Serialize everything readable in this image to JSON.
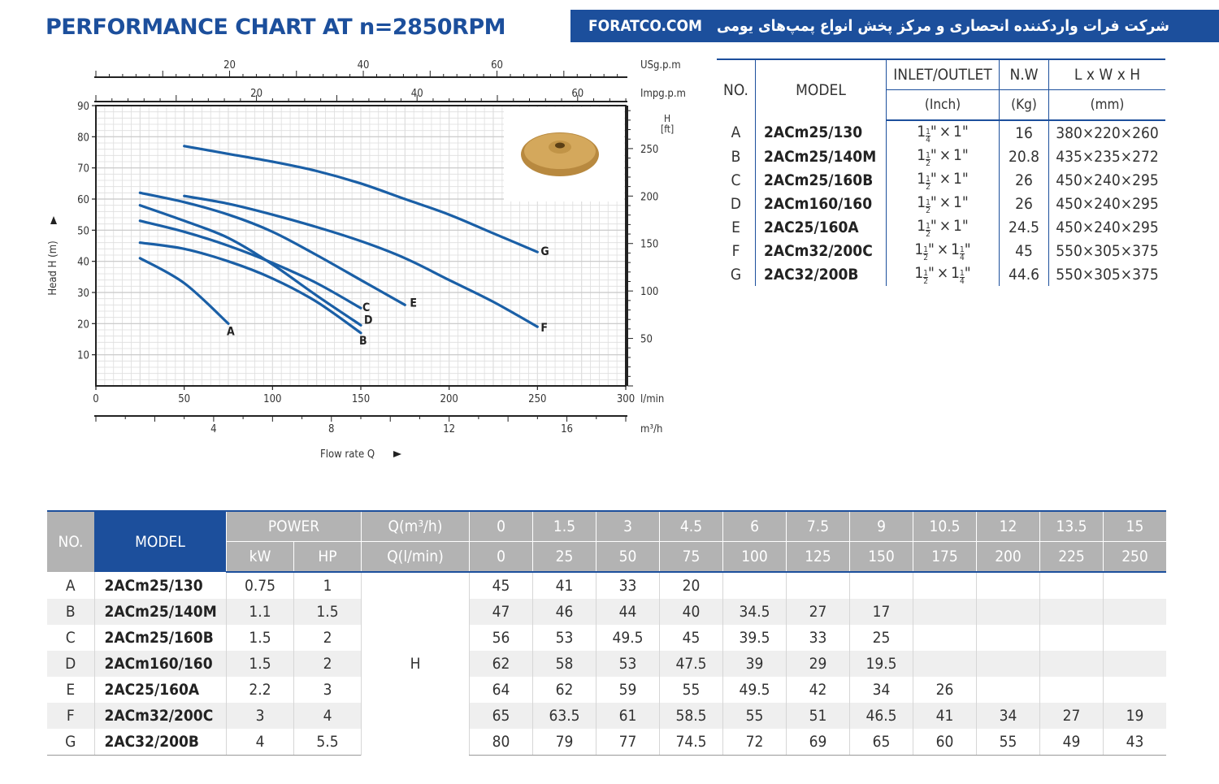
{
  "title": "PERFORMANCE CHART AT n=2850RPM",
  "banner": {
    "site": "FORATCO.COM",
    "persian": "شرکت فرات واردکننده انحصاری و مرکز پخش انواع پمپ‌های یومی"
  },
  "colors": {
    "brand": "#1c4f9c",
    "curve": "#1a5fa6",
    "header_gray": "#b3b3b3"
  },
  "chart_data": {
    "type": "line",
    "title": "PERFORMANCE CHART AT n=2850RPM",
    "xlabel": "Flow rate Q",
    "ylabel": "Head H (m)",
    "x_unit": "l/min",
    "y_unit": "m",
    "xlim": [
      0,
      300
    ],
    "ylim": [
      0,
      90
    ],
    "x_ticks": [
      0,
      50,
      100,
      150,
      200,
      250,
      300
    ],
    "y_ticks": [
      10,
      20,
      30,
      40,
      50,
      60,
      70,
      80,
      90
    ],
    "grid": true,
    "secondary_axes": {
      "usgpm": {
        "label": "USg.p.m",
        "ticks": [
          20,
          40,
          60
        ]
      },
      "impgpm": {
        "label": "Impg.p.m",
        "ticks": [
          20,
          40,
          60
        ]
      },
      "ft": {
        "label_top": "H",
        "label_unit": "[ft]",
        "ticks": [
          50,
          100,
          150,
          200,
          250
        ]
      },
      "m3h": {
        "label": "m³/h",
        "ticks": [
          4,
          8,
          12,
          16
        ]
      }
    },
    "series": [
      {
        "name": "A",
        "x": [
          25,
          50,
          75
        ],
        "y": [
          41,
          33,
          20
        ]
      },
      {
        "name": "B",
        "x": [
          25,
          50,
          75,
          100,
          125,
          150
        ],
        "y": [
          46,
          44,
          40,
          34.5,
          27,
          17
        ]
      },
      {
        "name": "C",
        "x": [
          25,
          50,
          75,
          100,
          125,
          150
        ],
        "y": [
          53,
          49.5,
          45,
          39.5,
          33,
          25
        ]
      },
      {
        "name": "D",
        "x": [
          25,
          50,
          75,
          100,
          125,
          150
        ],
        "y": [
          58,
          53,
          47.5,
          39,
          29,
          19.5
        ]
      },
      {
        "name": "E",
        "x": [
          25,
          50,
          75,
          100,
          125,
          150,
          175
        ],
        "y": [
          62,
          59,
          55,
          49.5,
          42,
          34,
          26
        ]
      },
      {
        "name": "F",
        "x": [
          50,
          75,
          100,
          125,
          150,
          175,
          200,
          225,
          250
        ],
        "y": [
          61,
          58.5,
          55,
          51,
          46.5,
          41,
          34,
          27,
          19
        ]
      },
      {
        "name": "G",
        "x": [
          50,
          75,
          100,
          125,
          150,
          175,
          200,
          225,
          250
        ],
        "y": [
          77,
          74.5,
          72,
          69,
          65,
          60,
          55,
          49,
          43
        ]
      }
    ]
  },
  "spec_table": {
    "headers": {
      "no": "NO.",
      "model": "MODEL",
      "io": "INLET/OUTLET",
      "io_unit": "(Inch)",
      "nw": "N.W",
      "nw_unit": "(Kg)",
      "dim": "L x W x H",
      "dim_unit": "(mm)"
    },
    "rows": [
      {
        "no": "A",
        "model": "2ACm25/130",
        "in_whole": "1",
        "in_num": "1",
        "in_den": "4",
        "x": "×",
        "out_whole": "1\"",
        "out_frac": false,
        "out_num": "",
        "out_den": "",
        "nw": "16",
        "dim": "380×220×260"
      },
      {
        "no": "B",
        "model": "2ACm25/140M",
        "in_whole": "1",
        "in_num": "1",
        "in_den": "2",
        "x": "×",
        "out_whole": "1\"",
        "out_frac": false,
        "out_num": "",
        "out_den": "",
        "nw": "20.8",
        "dim": "435×235×272"
      },
      {
        "no": "C",
        "model": "2ACm25/160B",
        "in_whole": "1",
        "in_num": "1",
        "in_den": "2",
        "x": "×",
        "out_whole": "1\"",
        "out_frac": false,
        "out_num": "",
        "out_den": "",
        "nw": "26",
        "dim": "450×240×295"
      },
      {
        "no": "D",
        "model": "2ACm160/160",
        "in_whole": "1",
        "in_num": "1",
        "in_den": "2",
        "x": "×",
        "out_whole": "1\"",
        "out_frac": false,
        "out_num": "",
        "out_den": "",
        "nw": "26",
        "dim": "450×240×295"
      },
      {
        "no": "E",
        "model": "2AC25/160A",
        "in_whole": "1",
        "in_num": "1",
        "in_den": "2",
        "x": "×",
        "out_whole": "1\"",
        "out_frac": false,
        "out_num": "",
        "out_den": "",
        "nw": "24.5",
        "dim": "450×240×295"
      },
      {
        "no": "F",
        "model": "2ACm32/200C",
        "in_whole": "1",
        "in_num": "1",
        "in_den": "2",
        "x": "×",
        "out_whole": "1",
        "out_frac": true,
        "out_num": "1",
        "out_den": "4",
        "nw": "45",
        "dim": "550×305×375"
      },
      {
        "no": "G",
        "model": "2AC32/200B",
        "in_whole": "1",
        "in_num": "1",
        "in_den": "2",
        "x": "×",
        "out_whole": "1",
        "out_frac": true,
        "out_num": "1",
        "out_den": "4",
        "nw": "44.6",
        "dim": "550×305×375"
      }
    ]
  },
  "perf_table": {
    "headers": {
      "no": "NO.",
      "model": "MODEL",
      "power": "POWER",
      "kw": "kW",
      "hp": "HP",
      "q_m3h": "Q(m³/h)",
      "q_lmin": "Q(l/min)",
      "h": "H"
    },
    "q_m3h": [
      "0",
      "1.5",
      "3",
      "4.5",
      "6",
      "7.5",
      "9",
      "10.5",
      "12",
      "13.5",
      "15"
    ],
    "q_lmin": [
      "0",
      "25",
      "50",
      "75",
      "100",
      "125",
      "150",
      "175",
      "200",
      "225",
      "250"
    ],
    "rows": [
      {
        "no": "A",
        "model": "2ACm25/130",
        "kw": "0.75",
        "hp": "1",
        "h": [
          "45",
          "41",
          "33",
          "20",
          "",
          "",
          "",
          "",
          "",
          "",
          ""
        ]
      },
      {
        "no": "B",
        "model": "2ACm25/140M",
        "kw": "1.1",
        "hp": "1.5",
        "h": [
          "47",
          "46",
          "44",
          "40",
          "34.5",
          "27",
          "17",
          "",
          "",
          "",
          ""
        ]
      },
      {
        "no": "C",
        "model": "2ACm25/160B",
        "kw": "1.5",
        "hp": "2",
        "h": [
          "56",
          "53",
          "49.5",
          "45",
          "39.5",
          "33",
          "25",
          "",
          "",
          "",
          ""
        ]
      },
      {
        "no": "D",
        "model": "2ACm160/160",
        "kw": "1.5",
        "hp": "2",
        "h": [
          "62",
          "58",
          "53",
          "47.5",
          "39",
          "29",
          "19.5",
          "",
          "",
          "",
          ""
        ]
      },
      {
        "no": "E",
        "model": "2AC25/160A",
        "kw": "2.2",
        "hp": "3",
        "h": [
          "64",
          "62",
          "59",
          "55",
          "49.5",
          "42",
          "34",
          "26",
          "",
          "",
          ""
        ]
      },
      {
        "no": "F",
        "model": "2ACm32/200C",
        "kw": "3",
        "hp": "4",
        "h": [
          "65",
          "63.5",
          "61",
          "58.5",
          "55",
          "51",
          "46.5",
          "41",
          "34",
          "27",
          "19"
        ]
      },
      {
        "no": "G",
        "model": "2AC32/200B",
        "kw": "4",
        "hp": "5.5",
        "h": [
          "80",
          "79",
          "77",
          "74.5",
          "72",
          "69",
          "65",
          "60",
          "55",
          "49",
          "43"
        ]
      }
    ]
  }
}
